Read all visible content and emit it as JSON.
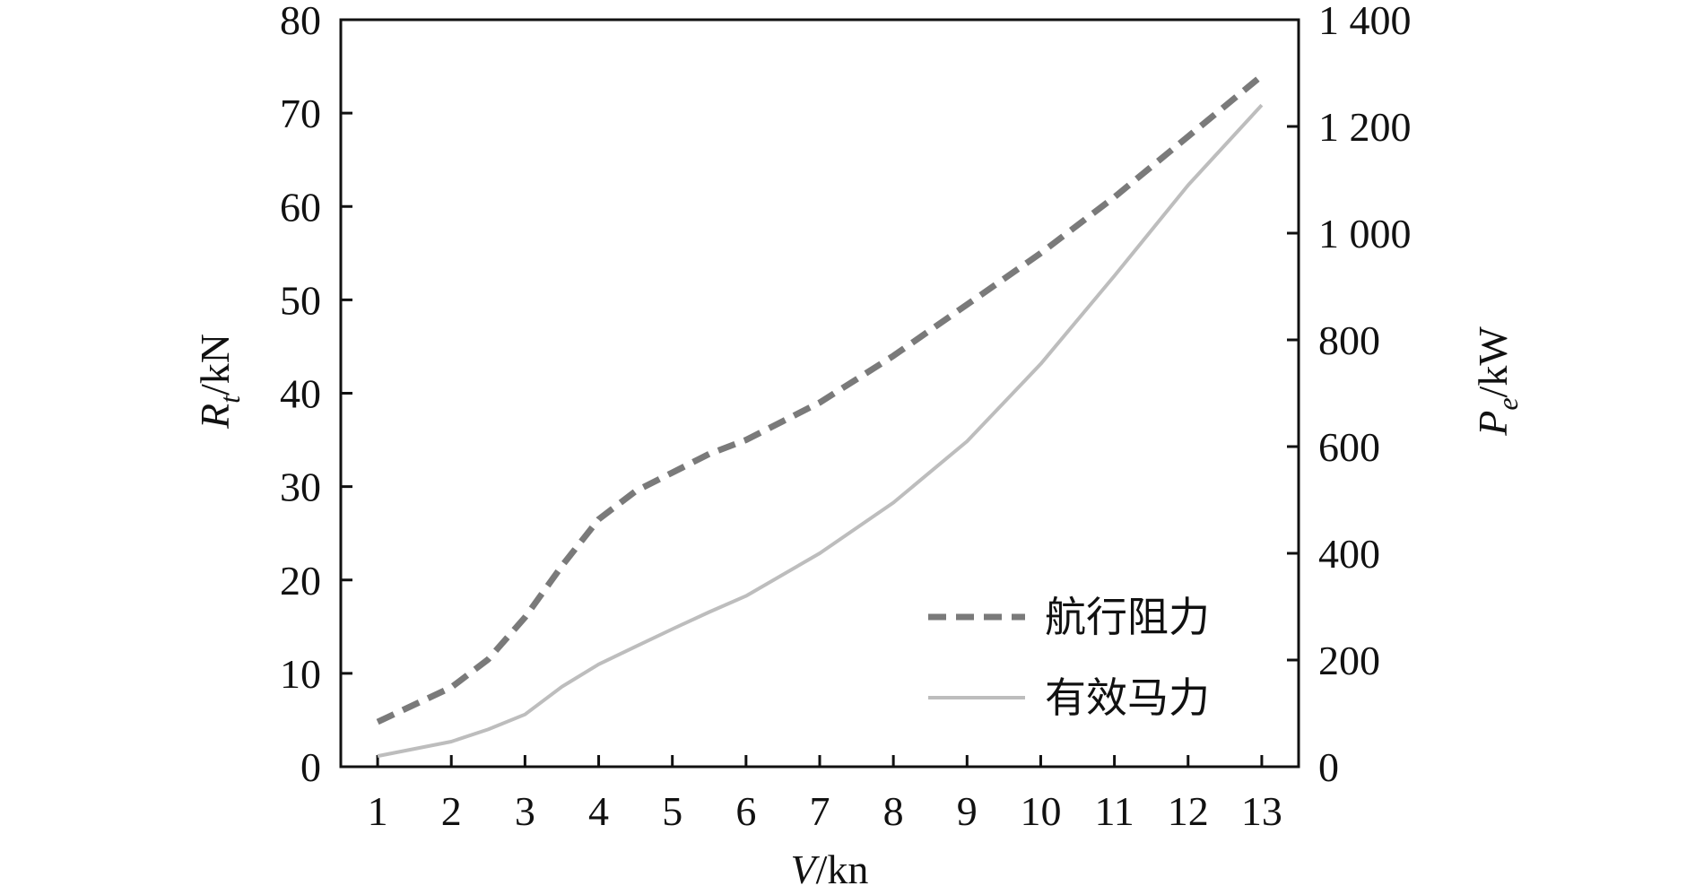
{
  "chart_data": {
    "type": "line",
    "title": "",
    "x": [
      1,
      2,
      3,
      4,
      5,
      6,
      7,
      8,
      9,
      10,
      11,
      12,
      13
    ],
    "xlim": [
      0.5,
      13.5
    ],
    "xlabel": {
      "italic": "V",
      "rest": "/kn"
    },
    "ylabel_left": {
      "italic": "R",
      "sub": "t",
      "rest": "/kN"
    },
    "ylabel_right": {
      "italic": "P",
      "sub": "e",
      "rest": "/kW"
    },
    "ylim_left": [
      0,
      80
    ],
    "ylim_right": [
      0,
      1400
    ],
    "x_ticks": [
      "1",
      "2",
      "3",
      "4",
      "5",
      "6",
      "7",
      "8",
      "9",
      "10",
      "11",
      "12",
      "13"
    ],
    "y_ticks_left": [
      "0",
      "10",
      "20",
      "30",
      "40",
      "50",
      "60",
      "70",
      "80"
    ],
    "y_ticks_right": [
      "0",
      "200",
      "400",
      "600",
      "800",
      "1 000",
      "1 200",
      "1 400"
    ],
    "grid": false,
    "legend_position": "bottom-right",
    "series": [
      {
        "name": "航行阻力",
        "axis": "left",
        "style": "dashed",
        "color": "#7a7a7a",
        "x": [
          1,
          2,
          2.5,
          3,
          3.5,
          4,
          4.5,
          5,
          5.5,
          6,
          6.5,
          7,
          7.5,
          8,
          9,
          10,
          11,
          12,
          13
        ],
        "values": [
          4.8,
          8.5,
          11.5,
          16.0,
          21.5,
          26.5,
          29.5,
          31.5,
          33.5,
          35.0,
          37.0,
          39.0,
          41.5,
          44.0,
          49.5,
          55.0,
          61.0,
          67.5,
          74.0
        ]
      },
      {
        "name": "有效马力",
        "axis": "right",
        "style": "solid",
        "color": "#bdbdbd",
        "x": [
          1,
          2,
          2.5,
          3,
          3.5,
          4,
          4.5,
          5,
          5.5,
          6,
          7,
          8,
          9,
          10,
          11,
          12,
          13
        ],
        "values": [
          20,
          47,
          70,
          98,
          150,
          192,
          225,
          258,
          290,
          320,
          400,
          495,
          610,
          755,
          920,
          1090,
          1240
        ]
      }
    ]
  }
}
